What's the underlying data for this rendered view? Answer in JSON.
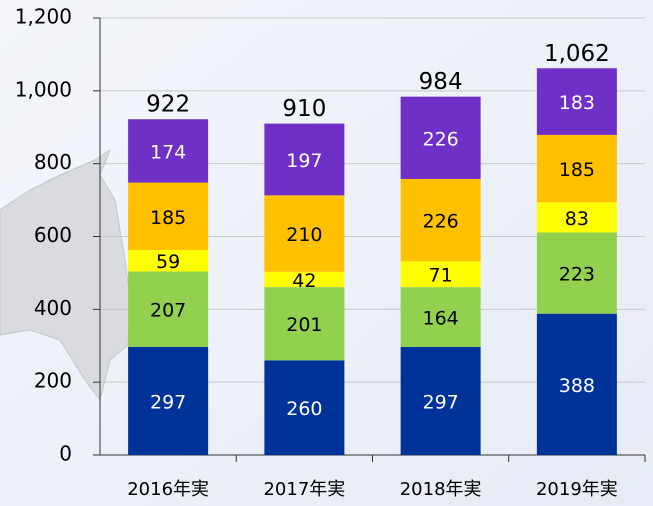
{
  "chart_data": {
    "type": "stacked_bar",
    "categories": [
      "2016年実",
      "2017年実",
      "2018年実",
      "2019年実"
    ],
    "series": [
      {
        "color": "#003399",
        "text_color": "#ffffff",
        "values": [
          297,
          260,
          297,
          388
        ]
      },
      {
        "color": "#92d050",
        "text_color": "#000000",
        "values": [
          207,
          201,
          164,
          223
        ]
      },
      {
        "color": "#ffff00",
        "text_color": "#000000",
        "values": [
          59,
          42,
          71,
          83
        ]
      },
      {
        "color": "#ffc000",
        "text_color": "#000000",
        "values": [
          185,
          210,
          226,
          185
        ]
      },
      {
        "color": "#7030c8",
        "text_color": "#ffffff",
        "values": [
          174,
          197,
          226,
          183
        ]
      }
    ],
    "totals": [
      922,
      910,
      984,
      1062
    ],
    "total_labels": [
      "922",
      "910",
      "984",
      "1,062"
    ],
    "ylim": [
      0,
      1200
    ],
    "yticks": [
      0,
      200,
      400,
      600,
      800,
      {
        "value": 1000,
        "label": "1,000"
      },
      {
        "value": 1200,
        "label": "1,200"
      }
    ],
    "grid": true
  }
}
